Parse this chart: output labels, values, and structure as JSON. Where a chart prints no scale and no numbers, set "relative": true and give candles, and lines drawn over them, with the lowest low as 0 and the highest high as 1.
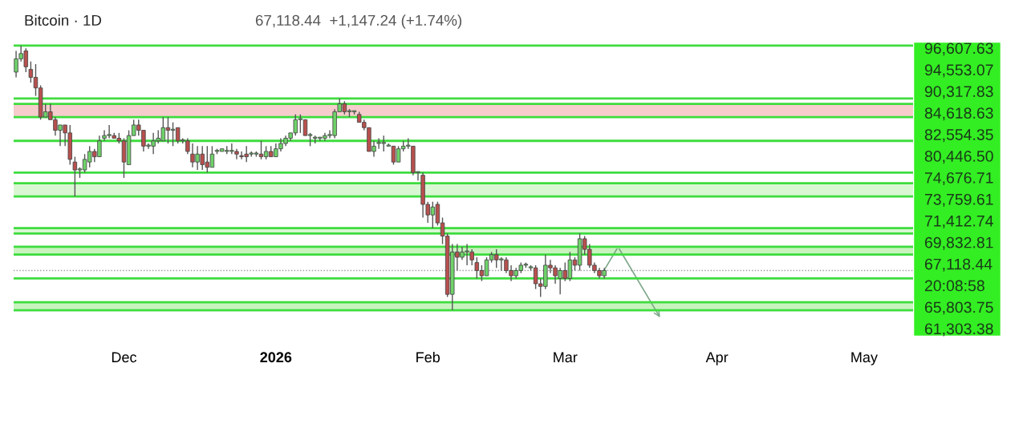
{
  "chart_data": {
    "type": "candlestick",
    "title": "Bitcoin · 1D",
    "relative": true,
    "x": [
      "2025-11-09",
      "2025-11-10",
      "2025-11-11",
      "2025-11-12",
      "2025-11-13",
      "2025-11-14",
      "2025-11-15",
      "2025-11-16",
      "2025-11-17",
      "2025-11-18",
      "2025-11-19",
      "2025-11-20",
      "2025-11-21",
      "2025-11-22",
      "2025-11-23",
      "2025-11-24",
      "2025-11-25",
      "2025-11-26",
      "2025-11-27",
      "2025-11-28",
      "2025-11-29",
      "2025-11-30",
      "2025-12-01",
      "2025-12-02",
      "2025-12-03",
      "2025-12-04",
      "2025-12-05",
      "2025-12-06",
      "2025-12-07",
      "2025-12-08",
      "2025-12-09",
      "2025-12-10",
      "2025-12-11",
      "2025-12-12",
      "2025-12-13",
      "2025-12-14",
      "2025-12-15",
      "2025-12-16",
      "2025-12-17",
      "2025-12-18",
      "2025-12-19",
      "2025-12-20",
      "2025-12-21",
      "2025-12-22",
      "2025-12-23",
      "2025-12-24",
      "2025-12-25",
      "2025-12-26",
      "2025-12-27",
      "2025-12-28",
      "2025-12-29",
      "2025-12-30",
      "2025-12-31",
      "2026-01-01",
      "2026-01-02",
      "2026-01-03",
      "2026-01-04",
      "2026-01-05",
      "2026-01-06",
      "2026-01-07",
      "2026-01-08",
      "2026-01-09",
      "2026-01-10",
      "2026-01-11",
      "2026-01-12",
      "2026-01-13",
      "2026-01-14",
      "2026-01-15",
      "2026-01-16",
      "2026-01-17",
      "2026-01-18",
      "2026-01-19",
      "2026-01-20",
      "2026-01-21",
      "2026-01-22",
      "2026-01-23",
      "2026-01-24",
      "2026-01-25",
      "2026-01-26",
      "2026-01-27",
      "2026-01-28",
      "2026-01-29",
      "2026-01-30",
      "2026-01-31",
      "2026-02-01",
      "2026-02-02",
      "2026-02-03",
      "2026-02-04",
      "2026-02-05",
      "2026-02-06",
      "2026-02-07",
      "2026-02-08",
      "2026-02-09",
      "2026-02-10",
      "2026-02-11",
      "2026-02-12",
      "2026-02-13",
      "2026-02-14",
      "2026-02-15",
      "2026-02-16",
      "2026-02-17",
      "2026-02-18",
      "2026-02-19",
      "2026-02-20",
      "2026-02-21",
      "2026-02-22",
      "2026-02-23",
      "2026-02-24",
      "2026-02-25",
      "2026-02-26",
      "2026-02-27",
      "2026-02-28",
      "2026-03-01",
      "2026-03-02",
      "2026-03-03",
      "2026-03-04",
      "2026-03-05",
      "2026-03-06",
      "2026-03-07",
      "2026-03-08",
      "2026-03-09"
    ],
    "ohlc": [
      [
        0.9,
        0.98,
        0.88,
        0.95
      ],
      [
        0.95,
        1.0,
        0.94,
        0.97
      ],
      [
        0.98,
        0.99,
        0.9,
        0.92
      ],
      [
        0.91,
        0.94,
        0.86,
        0.88
      ],
      [
        0.88,
        0.93,
        0.81,
        0.84
      ],
      [
        0.84,
        0.85,
        0.72,
        0.73
      ],
      [
        0.73,
        0.78,
        0.73,
        0.75
      ],
      [
        0.75,
        0.78,
        0.72,
        0.72
      ],
      [
        0.72,
        0.73,
        0.66,
        0.68
      ],
      [
        0.68,
        0.7,
        0.62,
        0.7
      ],
      [
        0.7,
        0.7,
        0.62,
        0.67
      ],
      [
        0.67,
        0.7,
        0.55,
        0.57
      ],
      [
        0.56,
        0.58,
        0.43,
        0.53
      ],
      [
        0.53,
        0.54,
        0.5,
        0.53
      ],
      [
        0.53,
        0.59,
        0.52,
        0.57
      ],
      [
        0.56,
        0.62,
        0.54,
        0.6
      ],
      [
        0.6,
        0.61,
        0.56,
        0.58
      ],
      [
        0.58,
        0.66,
        0.58,
        0.64
      ],
      [
        0.65,
        0.68,
        0.64,
        0.66
      ],
      [
        0.66,
        0.7,
        0.65,
        0.66
      ],
      [
        0.66,
        0.67,
        0.65,
        0.65
      ],
      [
        0.65,
        0.67,
        0.63,
        0.64
      ],
      [
        0.64,
        0.65,
        0.5,
        0.56
      ],
      [
        0.55,
        0.68,
        0.55,
        0.66
      ],
      [
        0.66,
        0.72,
        0.66,
        0.7
      ],
      [
        0.7,
        0.72,
        0.66,
        0.68
      ],
      [
        0.68,
        0.68,
        0.6,
        0.62
      ],
      [
        0.62,
        0.63,
        0.61,
        0.62
      ],
      [
        0.62,
        0.67,
        0.59,
        0.64
      ],
      [
        0.64,
        0.68,
        0.63,
        0.65
      ],
      [
        0.64,
        0.73,
        0.64,
        0.69
      ],
      [
        0.69,
        0.73,
        0.63,
        0.68
      ],
      [
        0.68,
        0.71,
        0.62,
        0.68
      ],
      [
        0.69,
        0.69,
        0.63,
        0.64
      ],
      [
        0.64,
        0.65,
        0.63,
        0.64
      ],
      [
        0.64,
        0.65,
        0.59,
        0.6
      ],
      [
        0.59,
        0.63,
        0.54,
        0.56
      ],
      [
        0.56,
        0.62,
        0.53,
        0.59
      ],
      [
        0.59,
        0.62,
        0.53,
        0.55
      ],
      [
        0.56,
        0.62,
        0.52,
        0.54
      ],
      [
        0.54,
        0.62,
        0.54,
        0.59
      ],
      [
        0.6,
        0.61,
        0.59,
        0.6
      ],
      [
        0.6,
        0.61,
        0.6,
        0.61
      ],
      [
        0.6,
        0.62,
        0.59,
        0.6
      ],
      [
        0.6,
        0.63,
        0.59,
        0.6
      ],
      [
        0.6,
        0.61,
        0.57,
        0.59
      ],
      [
        0.58,
        0.6,
        0.57,
        0.58
      ],
      [
        0.59,
        0.62,
        0.56,
        0.58
      ],
      [
        0.59,
        0.6,
        0.58,
        0.59
      ],
      [
        0.59,
        0.6,
        0.58,
        0.59
      ],
      [
        0.59,
        0.64,
        0.57,
        0.58
      ],
      [
        0.58,
        0.62,
        0.57,
        0.6
      ],
      [
        0.6,
        0.62,
        0.58,
        0.58
      ],
      [
        0.58,
        0.63,
        0.58,
        0.61
      ],
      [
        0.61,
        0.65,
        0.6,
        0.63
      ],
      [
        0.63,
        0.66,
        0.62,
        0.65
      ],
      [
        0.65,
        0.67,
        0.64,
        0.67
      ],
      [
        0.67,
        0.74,
        0.66,
        0.72
      ],
      [
        0.72,
        0.74,
        0.67,
        0.72
      ],
      [
        0.72,
        0.72,
        0.66,
        0.66
      ],
      [
        0.66,
        0.67,
        0.62,
        0.66
      ],
      [
        0.65,
        0.66,
        0.63,
        0.65
      ],
      [
        0.65,
        0.65,
        0.64,
        0.65
      ],
      [
        0.65,
        0.67,
        0.64,
        0.66
      ],
      [
        0.66,
        0.68,
        0.65,
        0.66
      ],
      [
        0.66,
        0.76,
        0.65,
        0.75
      ],
      [
        0.75,
        0.8,
        0.75,
        0.78
      ],
      [
        0.78,
        0.79,
        0.74,
        0.75
      ],
      [
        0.75,
        0.76,
        0.73,
        0.75
      ],
      [
        0.75,
        0.75,
        0.74,
        0.75
      ],
      [
        0.74,
        0.75,
        0.71,
        0.71
      ],
      [
        0.71,
        0.72,
        0.68,
        0.69
      ],
      [
        0.69,
        0.69,
        0.6,
        0.6
      ],
      [
        0.6,
        0.64,
        0.58,
        0.62
      ],
      [
        0.63,
        0.65,
        0.61,
        0.63
      ],
      [
        0.63,
        0.66,
        0.6,
        0.63
      ],
      [
        0.62,
        0.63,
        0.62,
        0.62
      ],
      [
        0.62,
        0.62,
        0.55,
        0.56
      ],
      [
        0.56,
        0.62,
        0.56,
        0.61
      ],
      [
        0.61,
        0.64,
        0.6,
        0.62
      ],
      [
        0.62,
        0.65,
        0.61,
        0.62
      ],
      [
        0.62,
        0.62,
        0.51,
        0.52
      ],
      [
        0.52,
        0.52,
        0.49,
        0.52
      ],
      [
        0.51,
        0.52,
        0.35,
        0.4
      ],
      [
        0.4,
        0.41,
        0.33,
        0.36
      ],
      [
        0.36,
        0.41,
        0.31,
        0.39
      ],
      [
        0.4,
        0.41,
        0.32,
        0.33
      ],
      [
        0.33,
        0.35,
        0.25,
        0.28
      ],
      [
        0.28,
        0.29,
        0.05,
        0.06
      ],
      [
        0.06,
        0.25,
        0.0,
        0.22
      ],
      [
        0.22,
        0.25,
        0.15,
        0.2
      ],
      [
        0.2,
        0.24,
        0.19,
        0.22
      ],
      [
        0.22,
        0.25,
        0.17,
        0.22
      ],
      [
        0.22,
        0.23,
        0.17,
        0.19
      ],
      [
        0.18,
        0.2,
        0.12,
        0.15
      ],
      [
        0.15,
        0.17,
        0.11,
        0.13
      ],
      [
        0.13,
        0.2,
        0.13,
        0.19
      ],
      [
        0.19,
        0.22,
        0.18,
        0.21
      ],
      [
        0.21,
        0.23,
        0.16,
        0.19
      ],
      [
        0.19,
        0.2,
        0.15,
        0.19
      ],
      [
        0.19,
        0.2,
        0.14,
        0.15
      ],
      [
        0.15,
        0.17,
        0.11,
        0.13
      ],
      [
        0.13,
        0.16,
        0.12,
        0.15
      ],
      [
        0.15,
        0.18,
        0.14,
        0.17
      ],
      [
        0.17,
        0.18,
        0.16,
        0.17
      ],
      [
        0.16,
        0.17,
        0.15,
        0.16
      ],
      [
        0.16,
        0.17,
        0.08,
        0.1
      ],
      [
        0.1,
        0.12,
        0.05,
        0.09
      ],
      [
        0.09,
        0.21,
        0.08,
        0.17
      ],
      [
        0.17,
        0.19,
        0.14,
        0.16
      ],
      [
        0.16,
        0.17,
        0.1,
        0.13
      ],
      [
        0.12,
        0.16,
        0.06,
        0.15
      ],
      [
        0.15,
        0.18,
        0.11,
        0.12
      ],
      [
        0.12,
        0.22,
        0.11,
        0.19
      ],
      [
        0.19,
        0.2,
        0.15,
        0.17
      ],
      [
        0.17,
        0.29,
        0.15,
        0.27
      ],
      [
        0.27,
        0.28,
        0.21,
        0.23
      ],
      [
        0.23,
        0.25,
        0.16,
        0.17
      ],
      [
        0.17,
        0.18,
        0.14,
        0.15
      ],
      [
        0.15,
        0.16,
        0.12,
        0.13
      ],
      [
        0.13,
        0.16,
        0.12,
        0.15
      ]
    ],
    "colors": [
      "#6fd26a",
      "#6fd26a",
      "#b8504e",
      "#b8504e",
      "#b8504e",
      "#b8504e",
      "#6fd26a",
      "#b8504e",
      "#b8504e",
      "#6fd26a",
      "#b8504e",
      "#b8504e",
      "#b8504e",
      "#6fd26a",
      "#6fd26a",
      "#6fd26a",
      "#b8504e",
      "#6fd26a",
      "#6fd26a",
      "#6fd26a",
      "#b8504e",
      "#b8504e",
      "#b8504e",
      "#6fd26a",
      "#6fd26a",
      "#b8504e",
      "#b8504e",
      "#6fd26a",
      "#6fd26a",
      "#6fd26a",
      "#6fd26a",
      "#b8504e",
      "#6fd26a",
      "#b8504e",
      "#6fd26a",
      "#b8504e",
      "#b8504e",
      "#6fd26a",
      "#b8504e",
      "#b8504e",
      "#6fd26a",
      "#6fd26a",
      "#6fd26a",
      "#6fd26a",
      "#6fd26a",
      "#b8504e",
      "#b8504e",
      "#b8504e",
      "#6fd26a",
      "#6fd26a",
      "#b8504e",
      "#6fd26a",
      "#b8504e",
      "#6fd26a",
      "#6fd26a",
      "#6fd26a",
      "#6fd26a",
      "#6fd26a",
      "#6fd26a",
      "#b8504e",
      "#6fd26a",
      "#6fd26a",
      "#6fd26a",
      "#6fd26a",
      "#6fd26a",
      "#6fd26a",
      "#6fd26a",
      "#b8504e",
      "#6fd26a",
      "#6fd26a",
      "#b8504e",
      "#b8504e",
      "#b8504e",
      "#6fd26a",
      "#6fd26a",
      "#6fd26a",
      "#6fd26a",
      "#b8504e",
      "#6fd26a",
      "#6fd26a",
      "#6fd26a",
      "#b8504e",
      "#6fd26a",
      "#b8504e",
      "#b8504e",
      "#6fd26a",
      "#b8504e",
      "#b8504e",
      "#b8504e",
      "#6fd26a",
      "#b8504e",
      "#6fd26a",
      "#6fd26a",
      "#b8504e",
      "#b8504e",
      "#b8504e",
      "#6fd26a",
      "#6fd26a",
      "#b8504e",
      "#6fd26a",
      "#b8504e",
      "#b8504e",
      "#6fd26a",
      "#6fd26a",
      "#6fd26a",
      "#6fd26a",
      "#b8504e",
      "#b8504e",
      "#6fd26a",
      "#b8504e",
      "#b8504e",
      "#6fd26a",
      "#b8504e",
      "#6fd26a",
      "#b8504e",
      "#6fd26a",
      "#b8504e",
      "#b8504e",
      "#b8504e",
      "#b8504e",
      "#6fd26a"
    ],
    "xlim": [
      "2025-11-08T12:00",
      "2026-05-11"
    ],
    "xticks": [
      {
        "value": "2025-12-01",
        "label": "Dec"
      },
      {
        "value": "2026-01-01",
        "label": "2026"
      },
      {
        "value": "2026-02-01",
        "label": "Feb"
      },
      {
        "value": "2026-03-01",
        "label": "Mar"
      },
      {
        "value": "2026-04-01",
        "label": "Apr"
      },
      {
        "value": "2026-05-01",
        "label": "May"
      }
    ],
    "tick_labels": "x",
    "grid": false,
    "legend": false,
    "ref_lines": [
      {
        "axis": "y",
        "value": 1.0,
        "color": "#3edc3e",
        "line_style": "solid"
      },
      {
        "axis": "y",
        "value": 0.8,
        "color": "#3edc3e",
        "line_style": "solid"
      },
      {
        "axis": "y",
        "value": 0.64,
        "color": "#3edc3e",
        "line_style": "solid"
      },
      {
        "axis": "y",
        "value": 0.52,
        "color": "#3edc3e",
        "line_style": "solid"
      },
      {
        "axis": "y",
        "value": 0.12,
        "color": "#3edc3e",
        "line_style": "solid"
      },
      {
        "axis": "y",
        "value": 0.15,
        "color": "#9a9a9a",
        "line_style": "dotted"
      },
      {
        "axis": "y",
        "value": 0.73,
        "color": "#3edc3e",
        "line_style": "solid"
      },
      {
        "axis": "y",
        "value": 0.78,
        "color": "#3edc3e",
        "line_style": "solid"
      },
      {
        "axis": "y",
        "value": 0.43,
        "color": "#3edc3e",
        "line_style": "solid"
      },
      {
        "axis": "y",
        "value": 0.48,
        "color": "#3edc3e",
        "line_style": "solid"
      },
      {
        "axis": "y",
        "value": 0.29,
        "color": "#3edc3e",
        "line_style": "solid"
      },
      {
        "axis": "y",
        "value": 0.31,
        "color": "#3edc3e",
        "line_style": "solid"
      },
      {
        "axis": "y",
        "value": 0.21,
        "color": "#3edc3e",
        "line_style": "solid"
      },
      {
        "axis": "y",
        "value": 0.24,
        "color": "#3edc3e",
        "line_style": "solid"
      },
      {
        "axis": "y",
        "value": 0.0,
        "color": "#3edc3e",
        "line_style": "solid"
      },
      {
        "axis": "y",
        "value": 0.03,
        "color": "#3edc3e",
        "line_style": "solid"
      }
    ],
    "bands": [
      {
        "axis": "y",
        "from": 0.73,
        "to": 0.78,
        "color": "#f6cccc"
      },
      {
        "axis": "y",
        "from": 0.43,
        "to": 0.48,
        "color": "#d8f7d2"
      },
      {
        "axis": "y",
        "from": 0.29,
        "to": 0.31,
        "color": "#d8f7d2"
      },
      {
        "axis": "y",
        "from": 0.21,
        "to": 0.24,
        "color": "#c8f3bf"
      },
      {
        "axis": "y",
        "from": 0.0,
        "to": 0.03,
        "color": "#c8f3bf"
      }
    ],
    "annotations": [
      "67,118.44  +1,147.24 (+1.74%)",
      "96,607.63",
      "94,553.07",
      "90,317.83",
      "84,618.63",
      "82,554.35",
      "80,446.50",
      "74,676.71",
      "73,759.61",
      "71,412.74",
      "69,832.81",
      "67,118.44",
      "20:08:58",
      "65,803.75",
      "61,303.38"
    ]
  }
}
